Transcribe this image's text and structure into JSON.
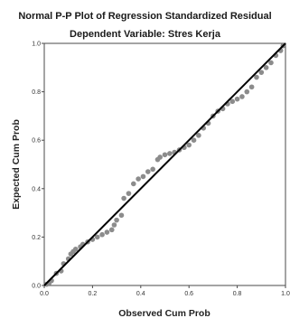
{
  "chart_data": {
    "type": "scatter",
    "title": "Normal P-P Plot of Regression Standardized Residual",
    "subtitle": "Dependent Variable: Stres Kerja",
    "xlabel": "Observed Cum Prob",
    "ylabel": "Expected Cum Prob",
    "xlim": [
      0.0,
      1.0
    ],
    "ylim": [
      0.0,
      1.0
    ],
    "x_ticks": [
      "0.0",
      "0.2",
      "0.4",
      "0.6",
      "0.8",
      "1.0"
    ],
    "y_ticks": [
      "0.0",
      "0.2",
      "0.4",
      "0.6",
      "0.8",
      "1.0"
    ],
    "grid": false,
    "reference_line": {
      "from": [
        0,
        0
      ],
      "to": [
        1,
        1
      ],
      "color": "#000000"
    },
    "point_color": "#8c8c8c",
    "points": [
      [
        0.01,
        0.005
      ],
      [
        0.02,
        0.01
      ],
      [
        0.03,
        0.02
      ],
      [
        0.05,
        0.05
      ],
      [
        0.07,
        0.06
      ],
      [
        0.08,
        0.09
      ],
      [
        0.1,
        0.11
      ],
      [
        0.11,
        0.13
      ],
      [
        0.12,
        0.14
      ],
      [
        0.13,
        0.15
      ],
      [
        0.15,
        0.16
      ],
      [
        0.16,
        0.17
      ],
      [
        0.18,
        0.18
      ],
      [
        0.2,
        0.19
      ],
      [
        0.22,
        0.2
      ],
      [
        0.24,
        0.21
      ],
      [
        0.26,
        0.22
      ],
      [
        0.28,
        0.23
      ],
      [
        0.29,
        0.25
      ],
      [
        0.3,
        0.27
      ],
      [
        0.32,
        0.29
      ],
      [
        0.33,
        0.36
      ],
      [
        0.35,
        0.38
      ],
      [
        0.37,
        0.42
      ],
      [
        0.39,
        0.44
      ],
      [
        0.41,
        0.45
      ],
      [
        0.43,
        0.47
      ],
      [
        0.45,
        0.48
      ],
      [
        0.47,
        0.52
      ],
      [
        0.48,
        0.53
      ],
      [
        0.5,
        0.54
      ],
      [
        0.52,
        0.545
      ],
      [
        0.54,
        0.55
      ],
      [
        0.56,
        0.56
      ],
      [
        0.58,
        0.57
      ],
      [
        0.6,
        0.58
      ],
      [
        0.62,
        0.6
      ],
      [
        0.64,
        0.62
      ],
      [
        0.66,
        0.65
      ],
      [
        0.68,
        0.67
      ],
      [
        0.7,
        0.7
      ],
      [
        0.72,
        0.72
      ],
      [
        0.74,
        0.73
      ],
      [
        0.76,
        0.75
      ],
      [
        0.78,
        0.76
      ],
      [
        0.8,
        0.77
      ],
      [
        0.82,
        0.78
      ],
      [
        0.84,
        0.8
      ],
      [
        0.86,
        0.82
      ],
      [
        0.88,
        0.86
      ],
      [
        0.9,
        0.88
      ],
      [
        0.92,
        0.9
      ],
      [
        0.94,
        0.92
      ],
      [
        0.96,
        0.95
      ],
      [
        0.98,
        0.97
      ],
      [
        0.99,
        0.99
      ]
    ]
  }
}
